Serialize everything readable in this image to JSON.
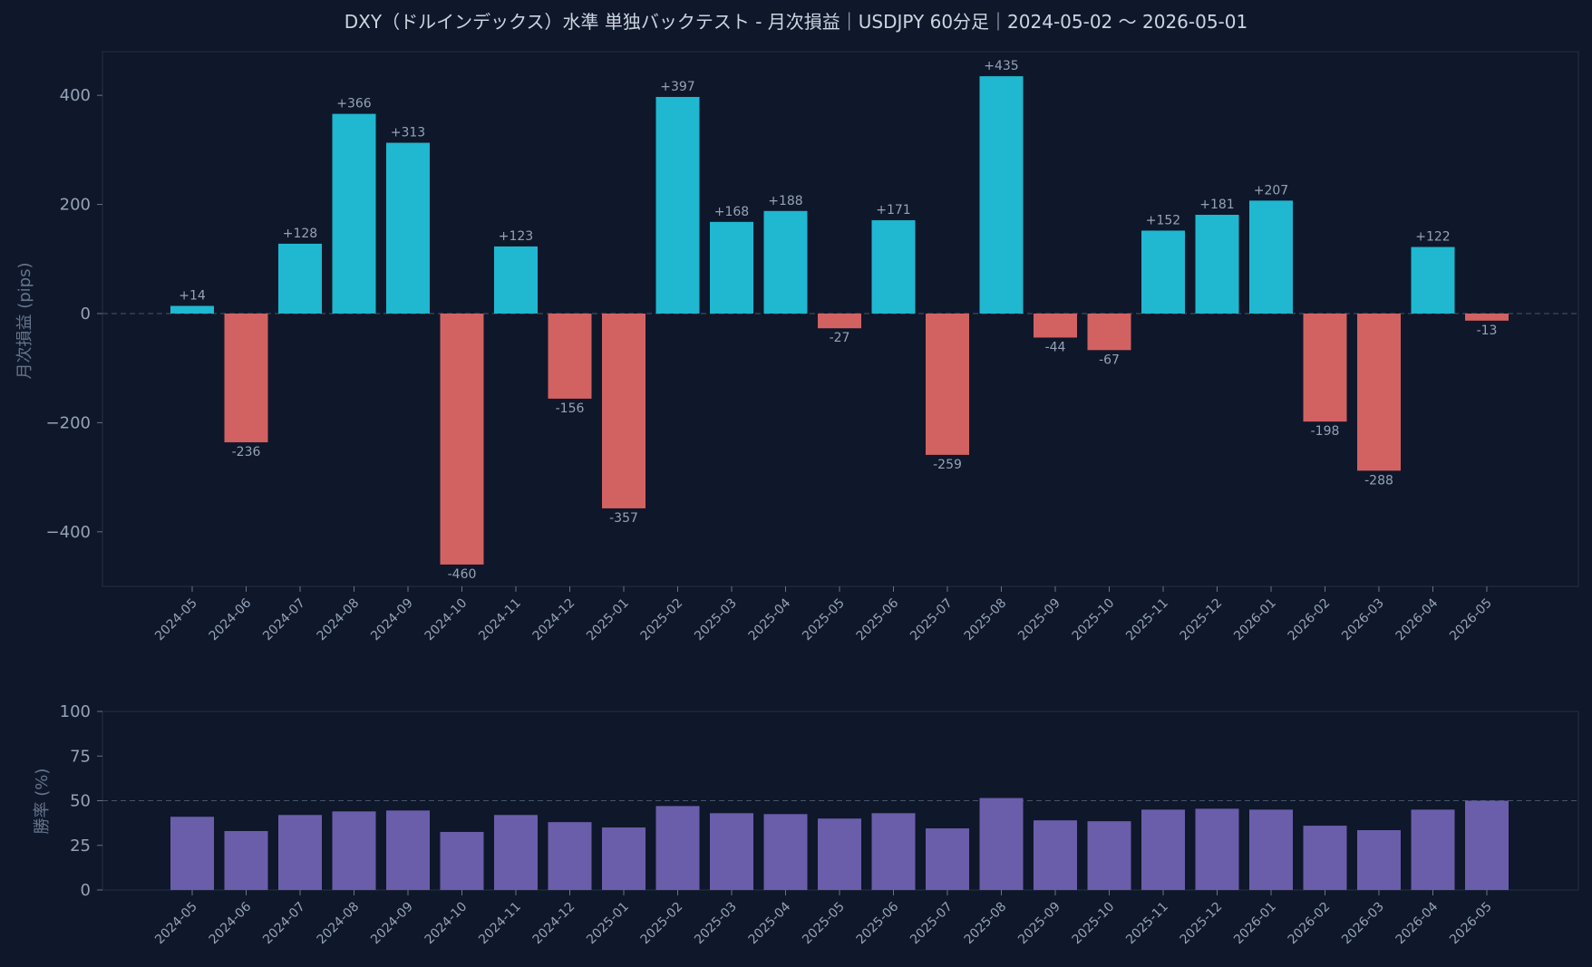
{
  "title": "DXY（ドルインデックス）水準 単独バックテスト - 月次損益｜USDJPY 60分足｜2024-05-02 〜 2026-05-01",
  "colors": {
    "background": "#0f172a",
    "positive": "#1fb8d0",
    "negative": "#d26262",
    "winrate": "#6a5eab"
  },
  "chart_data": [
    {
      "type": "bar",
      "categories": [
        "2024-05",
        "2024-06",
        "2024-07",
        "2024-08",
        "2024-09",
        "2024-10",
        "2024-11",
        "2024-12",
        "2025-01",
        "2025-02",
        "2025-03",
        "2025-04",
        "2025-05",
        "2025-06",
        "2025-07",
        "2025-08",
        "2025-09",
        "2025-10",
        "2025-11",
        "2025-12",
        "2026-01",
        "2026-02",
        "2026-03",
        "2026-04",
        "2026-05"
      ],
      "values": [
        14,
        -236,
        128,
        366,
        313,
        -460,
        123,
        -156,
        -357,
        397,
        168,
        188,
        -27,
        171,
        -259,
        435,
        -44,
        -67,
        152,
        181,
        207,
        -198,
        -288,
        122,
        -13
      ],
      "data_labels": [
        "+14",
        "-236",
        "+128",
        "+366",
        "+313",
        "-460",
        "+123",
        "-156",
        "-357",
        "+397",
        "+168",
        "+188",
        "-27",
        "+171",
        "-259",
        "+435",
        "-44",
        "-67",
        "+152",
        "+181",
        "+207",
        "-198",
        "-288",
        "+122",
        "-13"
      ],
      "ylabel": "月次損益 (pips)",
      "yticks": [
        400,
        200,
        0,
        -200,
        -400
      ],
      "ytick_labels": [
        "400",
        "200",
        "0",
        "−200",
        "−400"
      ],
      "ylim": [
        -500,
        480
      ],
      "reference_line": 0,
      "grid": false
    },
    {
      "type": "bar",
      "categories": [
        "2024-05",
        "2024-06",
        "2024-07",
        "2024-08",
        "2024-09",
        "2024-10",
        "2024-11",
        "2024-12",
        "2025-01",
        "2025-02",
        "2025-03",
        "2025-04",
        "2025-05",
        "2025-06",
        "2025-07",
        "2025-08",
        "2025-09",
        "2025-10",
        "2025-11",
        "2025-12",
        "2026-01",
        "2026-02",
        "2026-03",
        "2026-04",
        "2026-05"
      ],
      "values": [
        41,
        33,
        42,
        44,
        44.5,
        32.5,
        42,
        38,
        35,
        47,
        43,
        42.5,
        40,
        43,
        34.5,
        51.5,
        39,
        38.5,
        45,
        45.5,
        45,
        36,
        33.5,
        45,
        50
      ],
      "ylabel": "勝率 (%)",
      "yticks": [
        100,
        75,
        50,
        25,
        0
      ],
      "ytick_labels": [
        "100",
        "75",
        "50",
        "25",
        "0"
      ],
      "ylim": [
        0,
        100
      ],
      "reference_line": 50,
      "grid": false
    }
  ]
}
